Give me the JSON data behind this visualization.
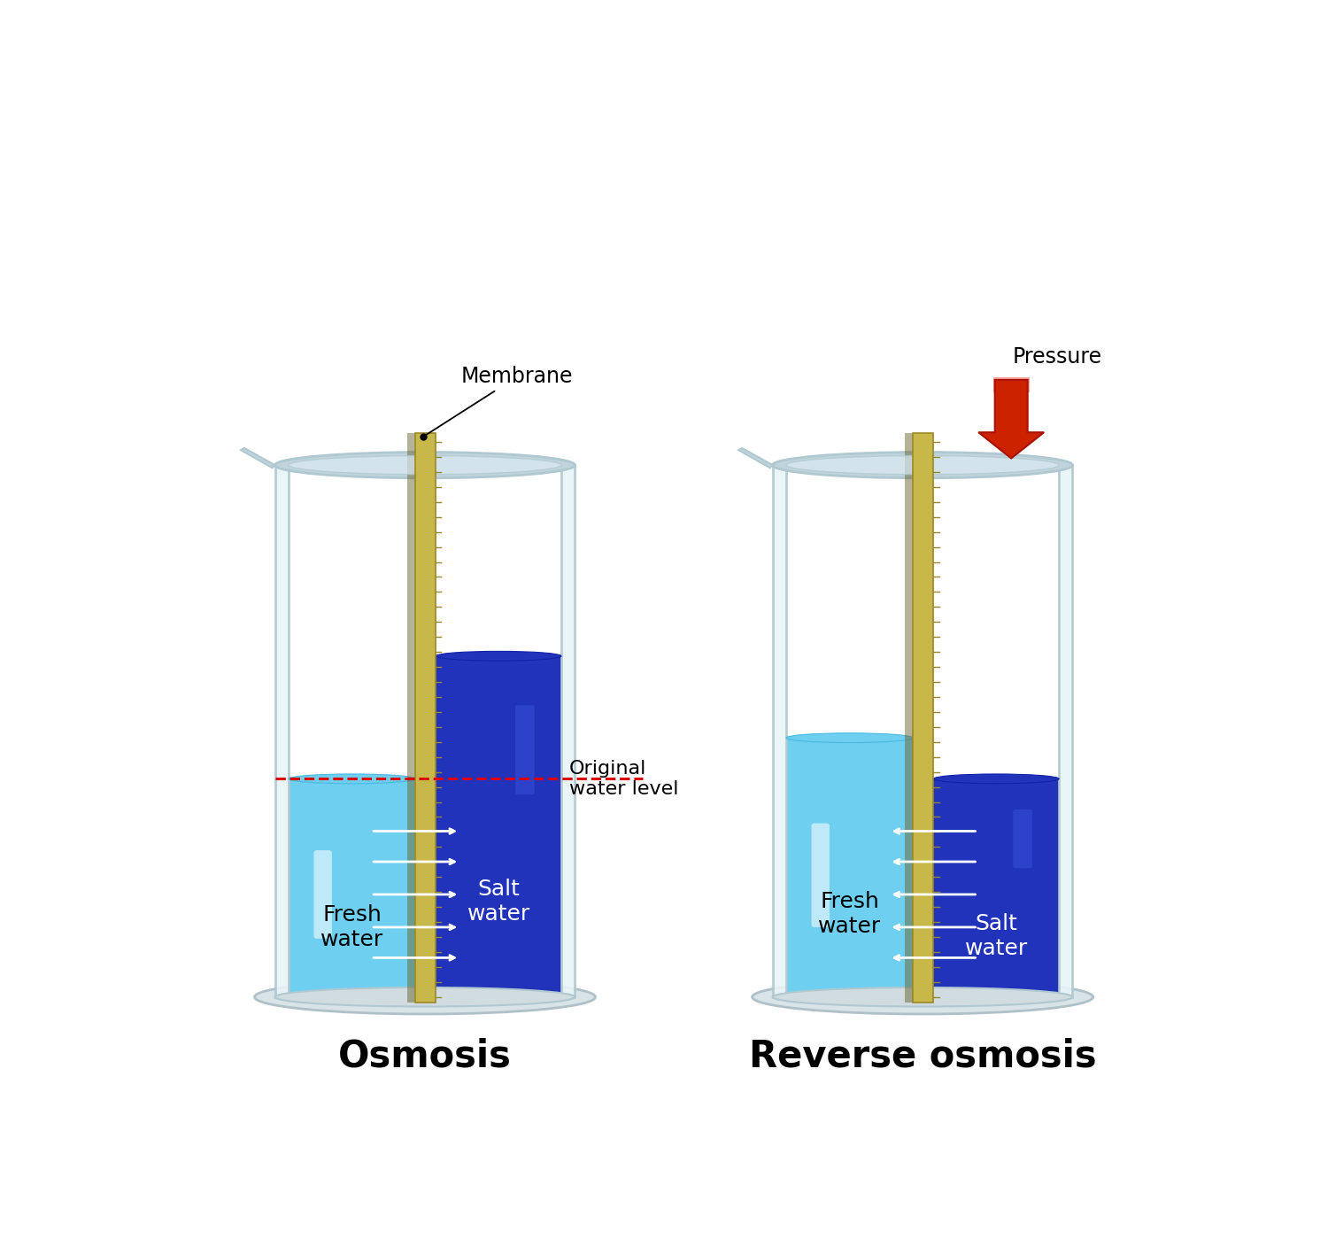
{
  "bg_color": "#ffffff",
  "title_osmosis": "Osmosis",
  "title_reverse": "Reverse osmosis",
  "label_membrane": "Membrane",
  "label_pressure": "Pressure",
  "label_fresh_water": "Fresh\nwater",
  "label_salt_water": "Salt\nwater",
  "label_original": "Original\nwater level",
  "fresh_water_color": "#6ecff0",
  "fresh_water_color_light": "#a8e4f8",
  "salt_water_color": "#2233bb",
  "salt_water_color_light": "#3355dd",
  "membrane_color1": "#c8b84a",
  "membrane_color2": "#9a8828",
  "membrane_shadow": "#6a6630",
  "glass_edge_color": "#b0c8d0",
  "glass_fill_color": "#e8f4f8",
  "glass_rim_color": "#c0d4dc",
  "base_color": "#d0dce0",
  "arrow_white": "#ffffff",
  "pressure_arrow_color": "#cc2200",
  "pressure_arrow_edge": "#aa1100",
  "dashed_line_color": "#dd0000",
  "title_fontsize": 30,
  "label_fontsize": 16,
  "water_label_fontsize": 18,
  "membrane_label_fontsize": 17
}
